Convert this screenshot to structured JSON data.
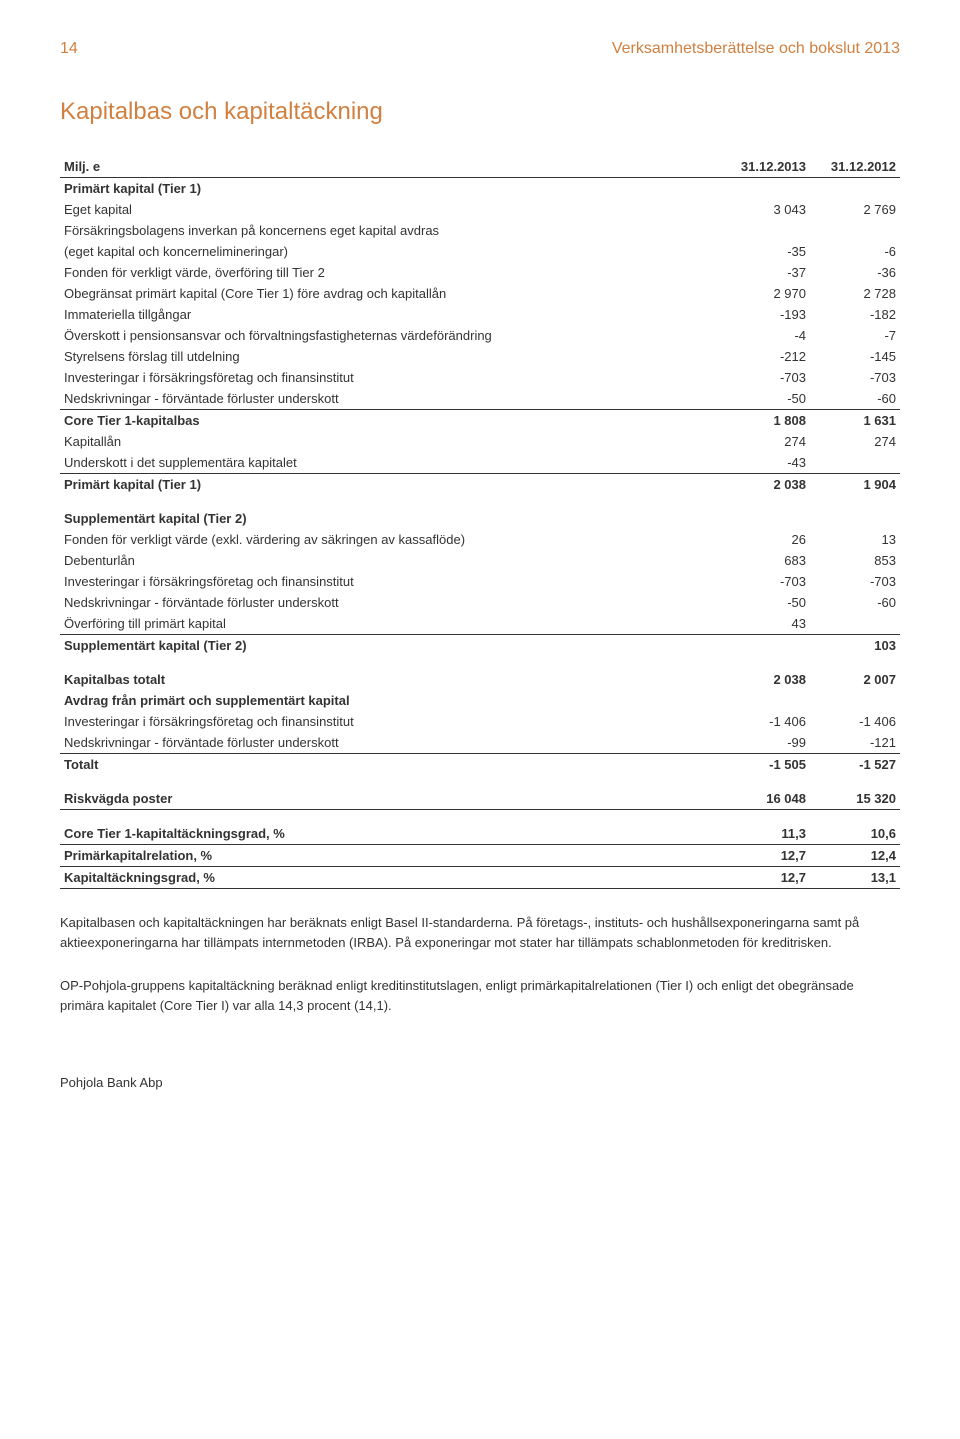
{
  "page_number": "14",
  "header_title": "Verksamhetsberättelse och bokslut 2013",
  "section_title": "Kapitalbas och kapitaltäckning",
  "col_head_label": "Milj. e",
  "col_head_y1": "31.12.2013",
  "col_head_y2": "31.12.2012",
  "rows": [
    {
      "label": "Primärt kapital (Tier 1)",
      "v1": "",
      "v2": "",
      "bold": true,
      "rule": false,
      "gap": false
    },
    {
      "label": "Eget kapital",
      "v1": "3 043",
      "v2": "2 769",
      "bold": false,
      "rule": false,
      "gap": false
    },
    {
      "label": "Försäkringsbolagens inverkan på koncernens eget kapital avdras",
      "v1": "",
      "v2": "",
      "bold": false,
      "rule": false,
      "gap": false
    },
    {
      "label": "(eget kapital och koncernelimineringar)",
      "v1": "-35",
      "v2": "-6",
      "bold": false,
      "rule": false,
      "gap": false
    },
    {
      "label": "Fonden för verkligt värde, överföring till Tier 2",
      "v1": "-37",
      "v2": "-36",
      "bold": false,
      "rule": false,
      "gap": false
    },
    {
      "label": "Obegränsat primärt kapital (Core Tier 1) före avdrag och kapitallån",
      "v1": "2 970",
      "v2": "2 728",
      "bold": false,
      "rule": false,
      "gap": false
    },
    {
      "label": "Immateriella tillgångar",
      "v1": "-193",
      "v2": "-182",
      "bold": false,
      "rule": false,
      "gap": false
    },
    {
      "label": "Överskott i pensionsansvar och förvaltningsfastigheternas värdeförändring",
      "v1": "-4",
      "v2": "-7",
      "bold": false,
      "rule": false,
      "gap": false
    },
    {
      "label": "Styrelsens förslag till utdelning",
      "v1": "-212",
      "v2": "-145",
      "bold": false,
      "rule": false,
      "gap": false
    },
    {
      "label": "Investeringar i försäkringsföretag och finansinstitut",
      "v1": "-703",
      "v2": "-703",
      "bold": false,
      "rule": false,
      "gap": false
    },
    {
      "label": "Nedskrivningar - förväntade förluster underskott",
      "v1": "-50",
      "v2": "-60",
      "bold": false,
      "rule": true,
      "gap": false
    },
    {
      "label": "Core Tier 1-kapitalbas",
      "v1": "1 808",
      "v2": "1 631",
      "bold": true,
      "rule": false,
      "gap": false
    },
    {
      "label": "Kapitallån",
      "v1": "274",
      "v2": "274",
      "bold": false,
      "rule": false,
      "gap": false
    },
    {
      "label": "Underskott i det supplementära kapitalet",
      "v1": "-43",
      "v2": "",
      "bold": false,
      "rule": true,
      "gap": false
    },
    {
      "label": "Primärt kapital (Tier 1)",
      "v1": "2 038",
      "v2": "1 904",
      "bold": true,
      "rule": false,
      "gap": false
    },
    {
      "label": "Supplementärt kapital (Tier 2)",
      "v1": "",
      "v2": "",
      "bold": true,
      "rule": false,
      "gap": true
    },
    {
      "label": "Fonden för verkligt värde (exkl. värdering av säkringen av kassaflöde)",
      "v1": "26",
      "v2": "13",
      "bold": false,
      "rule": false,
      "gap": false
    },
    {
      "label": "Debenturlån",
      "v1": "683",
      "v2": "853",
      "bold": false,
      "rule": false,
      "gap": false
    },
    {
      "label": "Investeringar i försäkringsföretag och finansinstitut",
      "v1": "-703",
      "v2": "-703",
      "bold": false,
      "rule": false,
      "gap": false
    },
    {
      "label": "Nedskrivningar - förväntade förluster underskott",
      "v1": "-50",
      "v2": "-60",
      "bold": false,
      "rule": false,
      "gap": false
    },
    {
      "label": "Överföring till primärt kapital",
      "v1": "43",
      "v2": "",
      "bold": false,
      "rule": true,
      "gap": false
    },
    {
      "label": "Supplementärt kapital (Tier 2)",
      "v1": "",
      "v2": "103",
      "bold": true,
      "rule": false,
      "gap": false
    },
    {
      "label": "Kapitalbas totalt",
      "v1": "2 038",
      "v2": "2 007",
      "bold": true,
      "rule": false,
      "gap": true
    },
    {
      "label": "Avdrag från primärt och supplementärt kapital",
      "v1": "",
      "v2": "",
      "bold": true,
      "rule": false,
      "gap": false
    },
    {
      "label": "Investeringar i försäkringsföretag och finansinstitut",
      "v1": "-1 406",
      "v2": "-1 406",
      "bold": false,
      "rule": false,
      "gap": false
    },
    {
      "label": "Nedskrivningar - förväntade förluster underskott",
      "v1": "-99",
      "v2": "-121",
      "bold": false,
      "rule": true,
      "gap": false
    },
    {
      "label": "Totalt",
      "v1": "-1 505",
      "v2": "-1 527",
      "bold": true,
      "rule": false,
      "gap": false
    },
    {
      "label": "Riskvägda poster",
      "v1": "16 048",
      "v2": "15 320",
      "bold": true,
      "rule": true,
      "gap": true
    },
    {
      "label": "Core Tier 1-kapitaltäckningsgrad, %",
      "v1": "11,3",
      "v2": "10,6",
      "bold": true,
      "rule": true,
      "gap": true
    },
    {
      "label": "Primärkapitalrelation, %",
      "v1": "12,7",
      "v2": "12,4",
      "bold": true,
      "rule": true,
      "gap": false
    },
    {
      "label": "Kapitaltäckningsgrad, %",
      "v1": "12,7",
      "v2": "13,1",
      "bold": true,
      "rule": true,
      "gap": false
    }
  ],
  "para1": "Kapitalbasen och kapitaltäckningen har beräknats enligt Basel II-standarderna. På företags-, instituts- och hushållsexponeringarna samt på aktieexponeringarna har tillämpats internmetoden (IRBA). På exponeringar mot stater har tillämpats schablonmetoden för kreditrisken.",
  "para2": "OP-Pohjola-gruppens kapitaltäckning beräknad enligt kreditinstitutslagen, enligt primärkapitalrelationen (Tier I) och enligt det obegränsade primära kapitalet (Core Tier I) var alla 14,3 procent (14,1).",
  "footer": "Pohjola Bank Abp"
}
